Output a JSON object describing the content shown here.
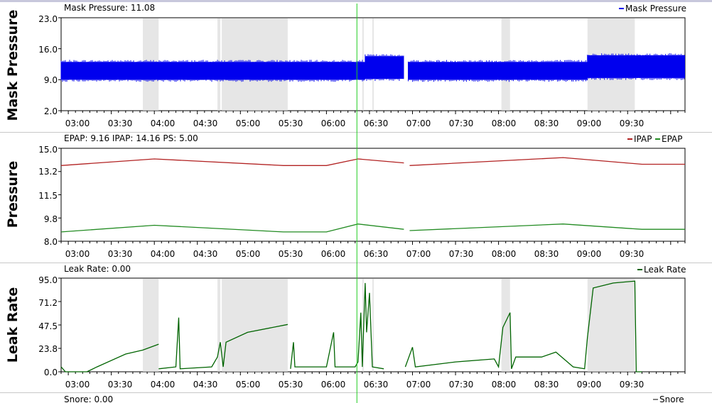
{
  "graphs": {
    "mask_pressure": {
      "title": "Mask Pressure",
      "readout": "Mask Pressure: 11.08",
      "legend": [
        {
          "name": "Mask Pressure",
          "color": "#0000ee"
        }
      ],
      "y_ticks": [
        "23.0",
        "16.0",
        "9.0",
        "2.0"
      ],
      "x_ticks": [
        "03:00",
        "03:30",
        "04:00",
        "04:30",
        "05:00",
        "05:30",
        "06:00",
        "06:30",
        "07:00",
        "07:30",
        "08:00",
        "08:30",
        "09:00",
        "09:30"
      ]
    },
    "pressure": {
      "title": "Pressure",
      "readout": "EPAP: 9.16 IPAP: 14.16 PS: 5.00",
      "legend": [
        {
          "name": "IPAP",
          "color": "#b22222"
        },
        {
          "name": "EPAP",
          "color": "#228b22"
        }
      ],
      "y_ticks": [
        "15.0",
        "13.2",
        "11.5",
        "9.8",
        "8.0"
      ],
      "x_ticks": [
        "03:00",
        "03:30",
        "04:00",
        "04:30",
        "05:00",
        "05:30",
        "06:00",
        "06:30",
        "07:00",
        "07:30",
        "08:00",
        "08:30",
        "09:00",
        "09:30"
      ]
    },
    "leak_rate": {
      "title": "Leak Rate",
      "readout": "Leak Rate: 0.00",
      "legend": [
        {
          "name": "Leak Rate",
          "color": "#006400"
        }
      ],
      "y_ticks": [
        "95.0",
        "71.2",
        "47.5",
        "23.8",
        "0.0"
      ],
      "x_ticks": [
        "03:00",
        "03:30",
        "04:00",
        "04:30",
        "05:00",
        "05:30",
        "06:00",
        "06:30",
        "07:00",
        "07:30",
        "08:00",
        "08:30",
        "09:00",
        "09:30"
      ]
    },
    "snore": {
      "readout": "Snore: 0.00",
      "legend": [
        {
          "name": "Snore",
          "color": "#808080"
        }
      ]
    }
  },
  "chart_data": [
    {
      "type": "area",
      "name": "Mask Pressure",
      "x_range": [
        "02:55",
        "10:10"
      ],
      "ylim": [
        2.0,
        23.0
      ],
      "series": [
        {
          "name": "Mask Pressure",
          "color": "#0000ee",
          "segments": [
            {
              "start": "02:55",
              "end": "06:27",
              "min": 9.0,
              "max": 13.0
            },
            {
              "start": "06:27",
              "end": "06:54",
              "min": 9.2,
              "max": 14.3
            },
            {
              "start": "06:57",
              "end": "09:02",
              "min": 9.0,
              "max": 13.0
            },
            {
              "start": "09:02",
              "end": "10:10",
              "min": 9.4,
              "max": 14.5
            }
          ]
        }
      ],
      "highlight_spans": [
        [
          "03:52",
          "04:03"
        ],
        [
          "04:44",
          "04:46"
        ],
        [
          "04:47",
          "05:33"
        ],
        [
          "06:25",
          "06:26"
        ],
        [
          "06:32",
          "06:33"
        ],
        [
          "08:02",
          "08:08"
        ],
        [
          "09:02",
          "09:35"
        ]
      ],
      "cursor_time": "06:21"
    },
    {
      "type": "line",
      "name": "Pressure",
      "x_range": [
        "02:55",
        "10:10"
      ],
      "ylim": [
        8.0,
        15.0
      ],
      "series": [
        {
          "name": "IPAP",
          "color": "#b22222",
          "points": [
            [
              "02:55",
              13.7
            ],
            [
              "04:00",
              14.2
            ],
            [
              "05:30",
              13.7
            ],
            [
              "06:00",
              13.7
            ],
            [
              "06:22",
              14.2
            ],
            [
              "06:54",
              13.9
            ],
            null,
            [
              "06:58",
              13.7
            ],
            [
              "08:45",
              14.3
            ],
            [
              "09:40",
              13.8
            ],
            [
              "10:10",
              13.8
            ]
          ]
        },
        {
          "name": "EPAP",
          "color": "#228b22",
          "points": [
            [
              "02:55",
              8.7
            ],
            [
              "04:00",
              9.2
            ],
            [
              "05:30",
              8.7
            ],
            [
              "06:00",
              8.7
            ],
            [
              "06:22",
              9.3
            ],
            [
              "06:54",
              8.9
            ],
            null,
            [
              "06:58",
              8.8
            ],
            [
              "08:45",
              9.3
            ],
            [
              "09:40",
              8.9
            ],
            [
              "10:10",
              8.9
            ]
          ]
        }
      ],
      "highlight_spans": [],
      "cursor_time": "06:21"
    },
    {
      "type": "line",
      "name": "Leak Rate",
      "x_range": [
        "02:55",
        "10:10"
      ],
      "ylim": [
        0.0,
        95.0
      ],
      "series": [
        {
          "name": "Leak Rate",
          "color": "#006400",
          "points": [
            [
              "02:55",
              5
            ],
            [
              "02:58",
              0
            ],
            [
              "03:13",
              0
            ],
            [
              "03:20",
              5
            ],
            [
              "03:40",
              18
            ],
            [
              "03:52",
              22
            ],
            [
              "04:03",
              28
            ],
            null,
            [
              "04:03",
              3
            ],
            [
              "04:15",
              5
            ],
            [
              "04:17",
              55
            ],
            [
              "04:18",
              3
            ],
            [
              "04:40",
              5
            ],
            [
              "04:44",
              15
            ],
            [
              "04:46",
              30
            ],
            [
              "04:48",
              5
            ],
            [
              "04:50",
              30
            ],
            [
              "05:05",
              40
            ],
            [
              "05:33",
              48
            ],
            null,
            [
              "05:35",
              3
            ],
            [
              "05:37",
              30
            ],
            [
              "05:38",
              5
            ],
            [
              "06:00",
              5
            ],
            [
              "06:05",
              40
            ],
            [
              "06:06",
              5
            ],
            [
              "06:20",
              5
            ],
            [
              "06:22",
              10
            ],
            [
              "06:24",
              60
            ],
            [
              "06:25",
              5
            ],
            [
              "06:27",
              90
            ],
            [
              "06:28",
              40
            ],
            [
              "06:30",
              80
            ],
            [
              "06:32",
              5
            ],
            [
              "06:40",
              3
            ],
            null,
            [
              "06:55",
              5
            ],
            [
              "07:00",
              25
            ],
            [
              "07:02",
              5
            ],
            [
              "07:30",
              10
            ],
            [
              "07:57",
              13
            ],
            [
              "08:00",
              5
            ],
            [
              "08:03",
              45
            ],
            [
              "08:08",
              60
            ],
            [
              "08:09",
              3
            ],
            [
              "08:12",
              15
            ],
            [
              "08:30",
              15
            ],
            [
              "08:40",
              20
            ],
            [
              "08:52",
              5
            ],
            [
              "09:00",
              3
            ],
            [
              "09:02",
              35
            ],
            [
              "09:06",
              85
            ],
            [
              "09:20",
              90
            ],
            [
              "09:35",
              92
            ],
            [
              "09:36",
              0
            ],
            [
              "09:40",
              0
            ]
          ]
        }
      ],
      "highlight_spans": [
        [
          "03:52",
          "04:03"
        ],
        [
          "04:44",
          "04:46"
        ],
        [
          "04:47",
          "05:33"
        ],
        [
          "06:25",
          "06:26"
        ],
        [
          "06:32",
          "06:33"
        ],
        [
          "08:02",
          "08:08"
        ],
        [
          "09:02",
          "09:35"
        ]
      ],
      "cursor_time": "06:21"
    }
  ]
}
